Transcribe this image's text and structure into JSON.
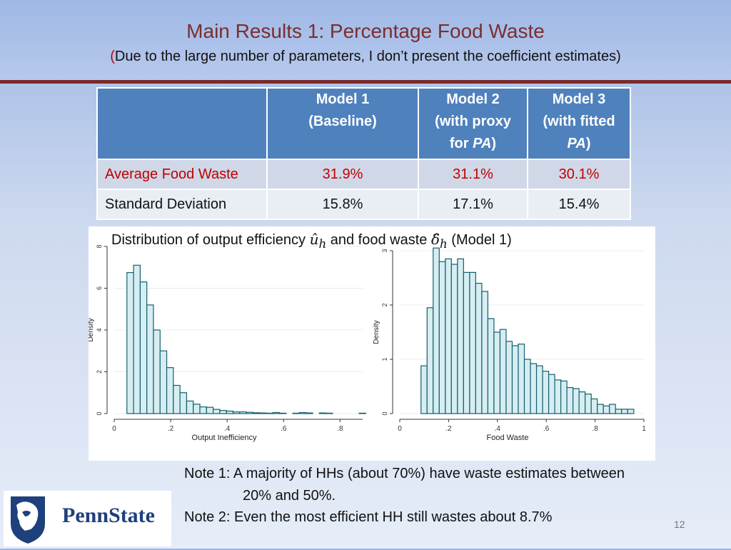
{
  "slide": {
    "title": "Main Results 1: Percentage Food Waste",
    "subtitle_open": "(",
    "subtitle_text": "Due to the large number of parameters, I don’t present the coefficient estimates)",
    "page_number": "12"
  },
  "table": {
    "headers": [
      {
        "line1": "Model 1",
        "line2": "(Baseline)",
        "line3_pre": "",
        "line3_italic": "",
        "line3_post": ""
      },
      {
        "line1": "Model 2",
        "line2": "(with proxy",
        "line3_pre": "for ",
        "line3_italic": "PA",
        "line3_post": ")"
      },
      {
        "line1": "Model 3",
        "line2": "(with fitted",
        "line3_pre": "",
        "line3_italic": "PA",
        "line3_post": ")"
      }
    ],
    "rows": [
      {
        "label": "Average Food Waste",
        "values": [
          "31.9%",
          "31.1%",
          "30.1%"
        ]
      },
      {
        "label": "Standard Deviation",
        "values": [
          "15.8%",
          "17.1%",
          "15.4%"
        ]
      }
    ]
  },
  "figure": {
    "caption_pre": "Distribution of output efficiency ",
    "caption_sym1": "û",
    "caption_sub1": "h",
    "caption_mid": " and food waste ",
    "caption_sym2": "δ̂",
    "caption_sub2": "h",
    "caption_post": " (Model 1)"
  },
  "chart_data": [
    {
      "type": "bar",
      "title": "",
      "xlabel": "Output Inefficiency",
      "ylabel": "Density",
      "xlim": [
        0,
        0.88
      ],
      "ylim": [
        0,
        8
      ],
      "xticks": [
        0,
        0.2,
        0.4,
        0.6,
        0.8
      ],
      "xtick_labels": [
        "0",
        ".2",
        ".4",
        ".6",
        ".8"
      ],
      "yticks": [
        0,
        2,
        4,
        6,
        8
      ],
      "ytick_labels": [
        "0",
        "2",
        "4",
        "6",
        "8"
      ],
      "bin_start": 0.045,
      "bin_width": 0.0235,
      "values": [
        6.75,
        7.1,
        6.3,
        5.2,
        4.0,
        3.0,
        2.2,
        1.35,
        1.0,
        0.6,
        0.45,
        0.32,
        0.3,
        0.2,
        0.15,
        0.12,
        0.08,
        0.08,
        0.06,
        0.04,
        0.03,
        0.02,
        0.05,
        0.02,
        0.0,
        0.02,
        0.05,
        0.03,
        0.0,
        0.03,
        0.02,
        0.0,
        0.0,
        0.0,
        0.0,
        0.02
      ]
    },
    {
      "type": "bar",
      "title": "",
      "xlabel": "Food Waste",
      "ylabel": "Density",
      "xlim": [
        0,
        1
      ],
      "ylim": [
        0,
        3
      ],
      "xticks": [
        0,
        0.2,
        0.4,
        0.6,
        0.8,
        1
      ],
      "xtick_labels": [
        "0",
        ".2",
        ".4",
        ".6",
        ".8",
        "1"
      ],
      "yticks": [
        0,
        1,
        2,
        3
      ],
      "ytick_labels": [
        "0",
        "1",
        "2",
        "3"
      ],
      "bin_start": 0.087,
      "bin_width": 0.0249,
      "values": [
        0.88,
        1.95,
        3.05,
        2.8,
        2.85,
        2.75,
        2.85,
        2.6,
        2.6,
        2.4,
        2.25,
        1.75,
        1.5,
        1.55,
        1.33,
        1.25,
        1.28,
        1.0,
        0.92,
        0.88,
        0.78,
        0.72,
        0.62,
        0.6,
        0.48,
        0.46,
        0.4,
        0.36,
        0.27,
        0.17,
        0.14,
        0.17,
        0.08,
        0.08,
        0.08
      ]
    }
  ],
  "notes": {
    "note1_line1": "Note 1: A majority of HHs (about 70%) have waste estimates between",
    "note1_line2": "20% and 50%.",
    "note2": "Note 2: Even the most efficient HH still wastes about 8.7%"
  },
  "logo": {
    "text": "PennState",
    "brand_color": "#1e407c"
  }
}
